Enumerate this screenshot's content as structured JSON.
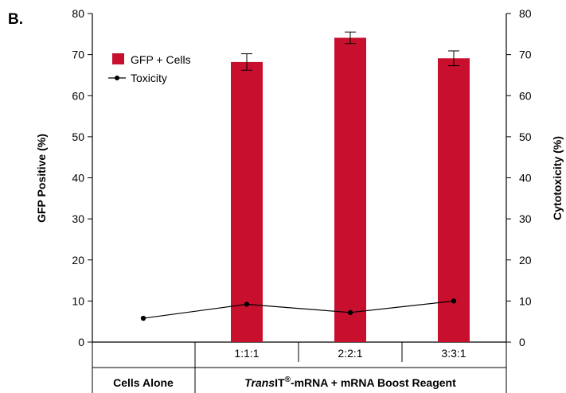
{
  "panel_label": "B.",
  "chart_data": {
    "type": "bar",
    "categories": [
      "Cells Alone",
      "1:1:1",
      "2:2:1",
      "3:3:1"
    ],
    "ylim": [
      0,
      80
    ],
    "y2lim": [
      0,
      80
    ],
    "yticks": [
      0,
      10,
      20,
      30,
      40,
      50,
      60,
      70,
      80
    ],
    "ylabel": "GFP Positive (%)",
    "y2label": "Cytotoxicity (%)",
    "grid": false,
    "legend_position": "top-left",
    "series": [
      {
        "name": "GFP + Cells",
        "type": "bar",
        "color": "#c8102e",
        "axis": "left",
        "values": [
          null,
          68.2,
          74.1,
          69.1
        ],
        "errors": [
          null,
          2.0,
          1.4,
          1.8
        ]
      },
      {
        "name": "Toxicity",
        "type": "line",
        "color": "#000000",
        "axis": "right",
        "values": [
          5.8,
          9.2,
          7.2,
          10.0
        ]
      }
    ],
    "group_labels": {
      "cells_alone": "Cells Alone",
      "transit_italic": "Trans",
      "transit_rest": "IT",
      "transit_sup": "®",
      "transit_suffix": "-mRNA + mRNA Boost Reagent"
    }
  }
}
